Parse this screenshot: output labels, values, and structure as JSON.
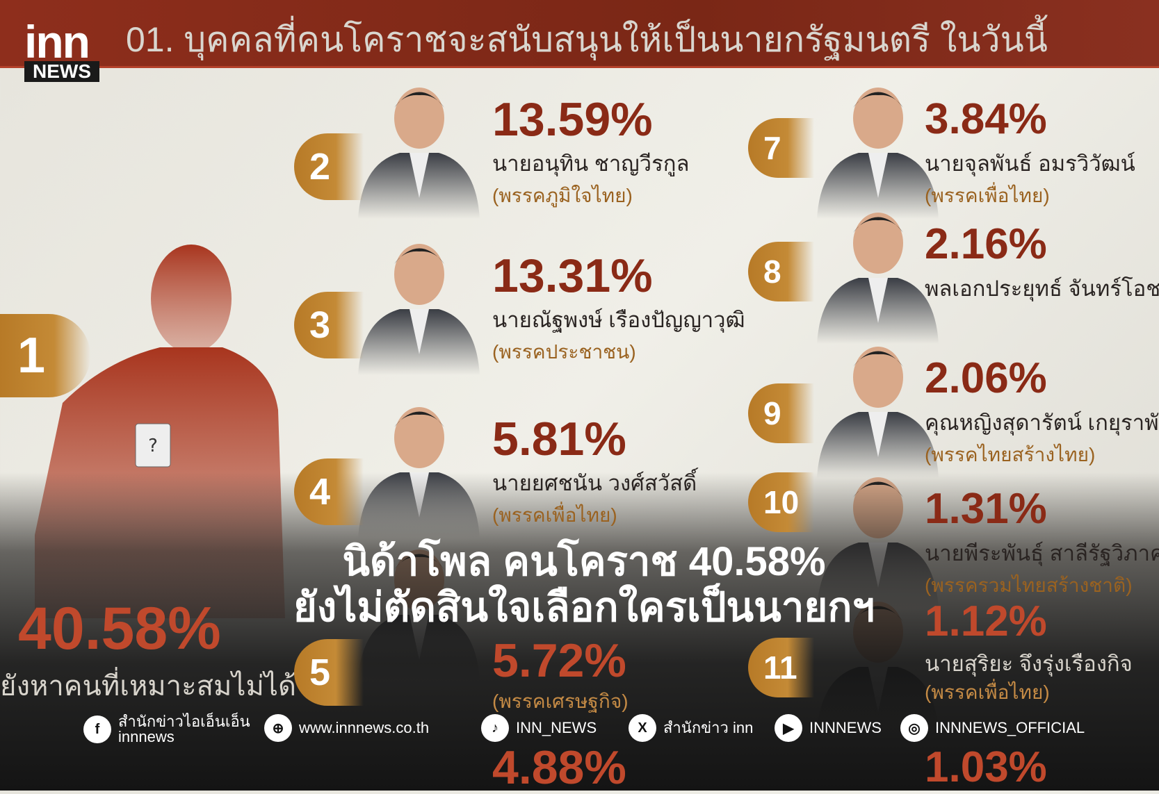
{
  "header": {
    "title": "01. บุคคลที่คนโคราชจะสนับสนุนให้เป็นนายกรัฐมนตรี ในวันนี้",
    "logo_top": "inn",
    "logo_bottom": "NEWS"
  },
  "first": {
    "rank": "1",
    "percent": "40.58%",
    "label": "ยังหาคนที่เหมาะสมไม่ได้"
  },
  "candidates": [
    {
      "rank": "2",
      "percent": "13.59%",
      "name": "นายอนุทิน ชาญวีรกูล",
      "party": "(พรรคภูมิใจไทย)"
    },
    {
      "rank": "3",
      "percent": "13.31%",
      "name": "นายณัฐพงษ์ เรืองปัญญาวุฒิ",
      "party": "(พรรคประชาชน)"
    },
    {
      "rank": "4",
      "percent": "5.81%",
      "name": "นายยศชนัน วงศ์สวัสดิ์",
      "party": "(พรรคเพื่อไทย)"
    },
    {
      "rank": "5",
      "percent": "5.72%",
      "name": "",
      "party": "(พรรคเศรษฐกิจ)"
    },
    {
      "rank": "7",
      "percent": "3.84%",
      "name": "นายจุลพันธ์ อมรวิวัฒน์",
      "party": "(พรรคเพื่อไทย)"
    },
    {
      "rank": "8",
      "percent": "2.16%",
      "name": "พลเอกประยุทธ์ จันทร์โอชา",
      "party": ""
    },
    {
      "rank": "9",
      "percent": "2.06%",
      "name": "คุณหญิงสุดารัตน์ เกยุราพันธุ์",
      "party": "(พรรคไทยสร้างไทย)"
    },
    {
      "rank": "10",
      "percent": "1.31%",
      "name": "นายพีระพันธุ์ สาลีรัฐวิภาค",
      "party": "(พรรครวมไทยสร้างชาติ)"
    },
    {
      "rank": "11",
      "percent": "1.12%",
      "name": "นายสุริยะ จึงรุ่งเรืองกิจ",
      "party": "(พรรคเพื่อไทย)"
    }
  ],
  "partial": {
    "mid": "4.88%",
    "right": "1.03%"
  },
  "headline": {
    "line1": "นิด้าโพล คนโคราช 40.58%",
    "line2": "ยังไม่ตัดสินใจเลือกใครเป็นนายกฯ"
  },
  "social": [
    {
      "icon": "facebook-icon",
      "label": "สำนักข่าวไอเอ็นเอ็น",
      "label2": "innnews"
    },
    {
      "icon": "globe-icon",
      "label": "www.innnews.co.th"
    },
    {
      "icon": "tiktok-icon",
      "label": "INN_NEWS"
    },
    {
      "icon": "x-icon",
      "label": "สำนักข่าว inn"
    },
    {
      "icon": "youtube-icon",
      "label": "INNNEWS"
    },
    {
      "icon": "instagram-icon",
      "label": "INNNEWS_OFFICIAL"
    }
  ],
  "colors": {
    "header": "#8e2e1c",
    "percent": "#8a2a16",
    "badge": "#b77a27",
    "party": "#9a6220"
  }
}
